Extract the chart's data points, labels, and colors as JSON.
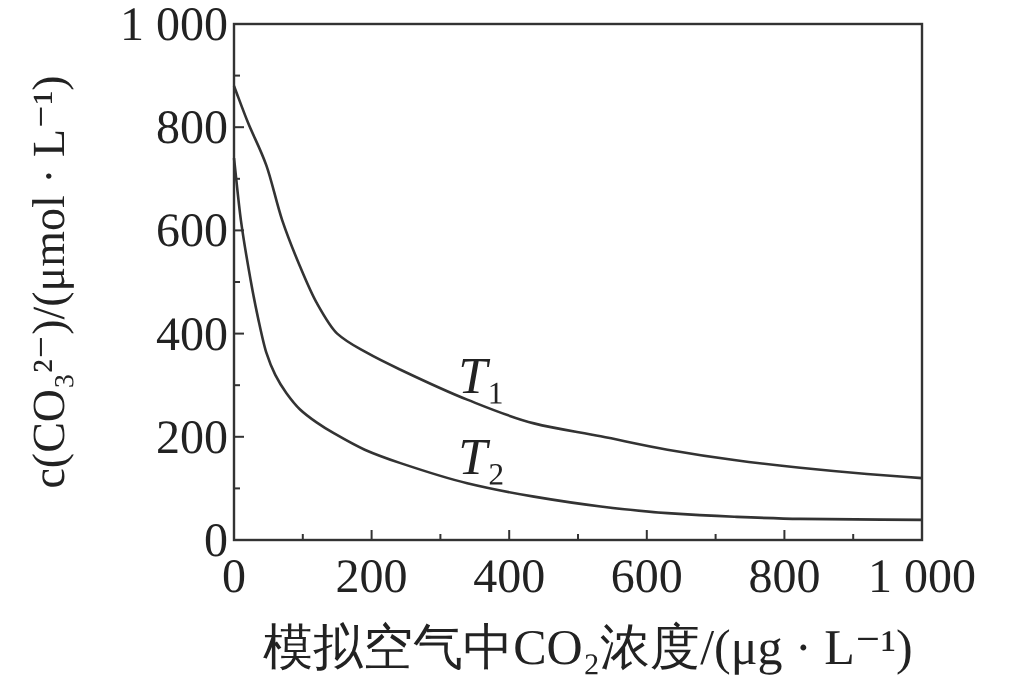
{
  "chart_data": {
    "type": "line",
    "xlabel": "模拟空气中CO₂浓度/(μg · L⁻¹)",
    "ylabel": "c(CO₃²⁻)/(μmol · L⁻¹)",
    "xlim": [
      0,
      1000
    ],
    "ylim": [
      0,
      1000
    ],
    "xticks": [
      0,
      {
        "value": 100,
        "label": null
      },
      200,
      {
        "value": 300,
        "label": null
      },
      400,
      {
        "value": 500,
        "label": null
      },
      600,
      {
        "value": 700,
        "label": null
      },
      800,
      {
        "value": 900,
        "label": null
      },
      {
        "value": 1000,
        "label": "1 000"
      }
    ],
    "yticks": [
      0,
      {
        "value": 100,
        "label": null
      },
      200,
      {
        "value": 300,
        "label": null
      },
      400,
      {
        "value": 500,
        "label": null
      },
      600,
      {
        "value": 700,
        "label": null
      },
      800,
      {
        "value": 900,
        "label": null
      },
      {
        "value": 1000,
        "label": "1 000"
      }
    ],
    "grid": false,
    "marker": "none",
    "line_style": "solid",
    "series": [
      {
        "name": "T₁",
        "color": "#333333",
        "x": [
          0,
          20,
          47,
          70,
          96,
          120,
          150,
          193,
          242,
          339,
          436,
          533,
          630,
          727,
          823,
          920,
          1000
        ],
        "values": [
          880,
          810,
          726,
          620,
          530,
          460,
          400,
          363,
          330,
          272,
          226,
          201,
          175,
          155,
          140,
          128,
          120
        ]
      },
      {
        "name": "T₂",
        "color": "#333333",
        "x": [
          0,
          10,
          24,
          35,
          47,
          60,
          76,
          96,
          120,
          145,
          190,
          242,
          339,
          436,
          533,
          630,
          727,
          823,
          1000
        ],
        "values": [
          740,
          620,
          505,
          430,
          363,
          320,
          285,
          253,
          228,
          207,
          175,
          149,
          110,
          84,
          65,
          52,
          45,
          41,
          39
        ]
      }
    ]
  }
}
